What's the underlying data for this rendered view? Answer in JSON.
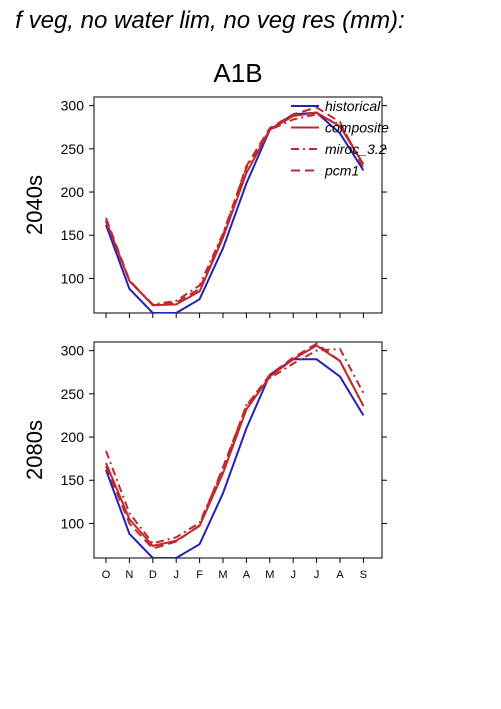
{
  "figure": {
    "title": "f veg, no water lim, no veg res (mm):",
    "scenario": "A1B"
  },
  "legend": [
    {
      "name": "historical",
      "color": "#2222bb",
      "dash": "solid"
    },
    {
      "name": "composite",
      "color": "#c0282d",
      "dash": "solid"
    },
    {
      "name": "miroc_3.2",
      "color": "#c0282d",
      "dash": "dashdot"
    },
    {
      "name": "pcm1",
      "color": "#c0282d",
      "dash": "dashed"
    }
  ],
  "chart_data": [
    {
      "type": "line",
      "title": "2040s",
      "categories": [
        "O",
        "N",
        "D",
        "J",
        "F",
        "M",
        "A",
        "M",
        "J",
        "J",
        "A",
        "S"
      ],
      "ylim": [
        60,
        310
      ],
      "yticks": [
        100,
        150,
        200,
        250,
        300
      ],
      "grid": false,
      "legend_position": "top-right",
      "series": [
        {
          "name": "historical",
          "values": [
            162,
            88,
            60,
            60,
            76,
            135,
            210,
            272,
            290,
            292,
            268,
            225
          ]
        },
        {
          "name": "composite",
          "values": [
            167,
            97,
            69,
            70,
            85,
            147,
            222,
            272,
            288,
            292,
            276,
            232
          ]
        },
        {
          "name": "miroc_3.2",
          "values": [
            166,
            97,
            70,
            74,
            92,
            152,
            228,
            272,
            284,
            290,
            278,
            232
          ]
        },
        {
          "name": "pcm1",
          "values": [
            170,
            98,
            69,
            72,
            88,
            150,
            230,
            274,
            290,
            298,
            281,
            228
          ]
        }
      ]
    },
    {
      "type": "line",
      "title": "2080s",
      "categories": [
        "O",
        "N",
        "D",
        "J",
        "F",
        "M",
        "A",
        "M",
        "J",
        "J",
        "A",
        "S"
      ],
      "ylim": [
        60,
        310
      ],
      "yticks": [
        100,
        150,
        200,
        250,
        300
      ],
      "grid": false,
      "series": [
        {
          "name": "historical",
          "values": [
            162,
            88,
            60,
            60,
            76,
            135,
            210,
            272,
            290,
            290,
            270,
            225
          ]
        },
        {
          "name": "composite",
          "values": [
            170,
            105,
            74,
            80,
            97,
            158,
            232,
            270,
            290,
            306,
            288,
            236
          ]
        },
        {
          "name": "miroc_3.2",
          "values": [
            184,
            112,
            77,
            84,
            101,
            162,
            237,
            268,
            285,
            300,
            302,
            251
          ]
        },
        {
          "name": "pcm1",
          "values": [
            166,
            100,
            71,
            79,
            98,
            165,
            236,
            272,
            292,
            308,
            288,
            236
          ]
        }
      ]
    }
  ]
}
